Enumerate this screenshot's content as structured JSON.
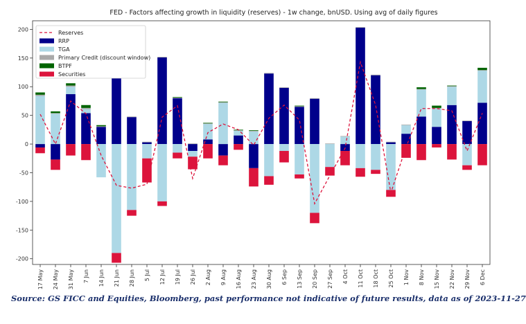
{
  "source_note": "Source: GS FICC and Equities, Bloomberg, past performance not indicative of future results, data as of 2023-11-27",
  "colors": {
    "rrp": "#00008b",
    "tga": "#add8e6",
    "primary_credit": "#a9a9a9",
    "btpf": "#006400",
    "securities": "#dc143c",
    "reserves": "#dc143c"
  },
  "chart_data": {
    "type": "bar",
    "stacked": true,
    "title": "FED - Factors affecting growth in liquidity (reserves) - 1w change, bnUSD. Using avg of daily figures",
    "xlabel": "",
    "ylabel": "",
    "ylim": [
      -210,
      215
    ],
    "yticks": [
      -200,
      -150,
      -100,
      -50,
      0,
      50,
      100,
      150,
      200
    ],
    "legend_position": "upper left",
    "grid": false,
    "categories": [
      "17 May",
      "24 May",
      "31 May",
      "7 Jun",
      "14 Jun",
      "21 Jun",
      "28 Jun",
      "5 Jul",
      "12 Jul",
      "19 Jul",
      "26 Jul",
      "2 Aug",
      "9 Aug",
      "16 Aug",
      "23 Aug",
      "30 Aug",
      "6 Sep",
      "13 Sep",
      "20 Sep",
      "27 Sep",
      "4 Oct",
      "11 Oct",
      "18 Oct",
      "25 Oct",
      "1 Nov",
      "8 Nov",
      "15 Nov",
      "22 Nov",
      "29 Nov",
      "6 Dec"
    ],
    "series": [
      {
        "name": "RRP",
        "key": "rrp",
        "values": [
          -6,
          -27,
          87,
          54,
          30,
          116,
          47,
          3,
          151,
          80,
          -12,
          8,
          -20,
          15,
          -42,
          123,
          98,
          65,
          79,
          0,
          -12,
          203,
          120,
          3,
          18,
          48,
          30,
          68,
          40,
          72
        ]
      },
      {
        "name": "TGA",
        "key": "tga",
        "values": [
          84,
          53,
          13,
          7,
          -58,
          -190,
          -115,
          -25,
          -100,
          -15,
          -10,
          27,
          72,
          8,
          22,
          -56,
          -12,
          -53,
          -120,
          -40,
          13,
          -42,
          -45,
          -80,
          15,
          47,
          32,
          32,
          -37,
          56
        ]
      },
      {
        "name": "Primary Credit (discount window)",
        "key": "primary_credit",
        "values": [
          2,
          1,
          2,
          2,
          1,
          1,
          1,
          1,
          1,
          1,
          1,
          1,
          1,
          1,
          1,
          1,
          1,
          1,
          1,
          1,
          1,
          1,
          1,
          1,
          1,
          1,
          1,
          1,
          1,
          1
        ]
      },
      {
        "name": "BTPF",
        "key": "btpf",
        "values": [
          4,
          3,
          4,
          5,
          2,
          0,
          0,
          0,
          0,
          1,
          0,
          1,
          1,
          1,
          1,
          0,
          0,
          1,
          0,
          0,
          0,
          0,
          0,
          0,
          0,
          3,
          4,
          1,
          0,
          4
        ]
      },
      {
        "name": "Securities",
        "key": "securities",
        "values": [
          -10,
          -18,
          -20,
          -28,
          0,
          -17,
          -10,
          -42,
          -8,
          -10,
          -22,
          -25,
          -17,
          -10,
          -32,
          -15,
          -20,
          -7,
          -18,
          -15,
          -25,
          -15,
          -7,
          -12,
          -24,
          -28,
          -6,
          -27,
          -8,
          -37
        ]
      }
    ],
    "line_series": {
      "name": "Reserves",
      "key": "reserves",
      "style": "dashed",
      "values": [
        52,
        0,
        75,
        53,
        -20,
        -72,
        -77,
        -70,
        47,
        67,
        -60,
        20,
        35,
        25,
        -2,
        45,
        68,
        42,
        -104,
        -55,
        -7,
        143,
        68,
        -85,
        -5,
        62,
        62,
        58,
        -12,
        54
      ]
    }
  }
}
